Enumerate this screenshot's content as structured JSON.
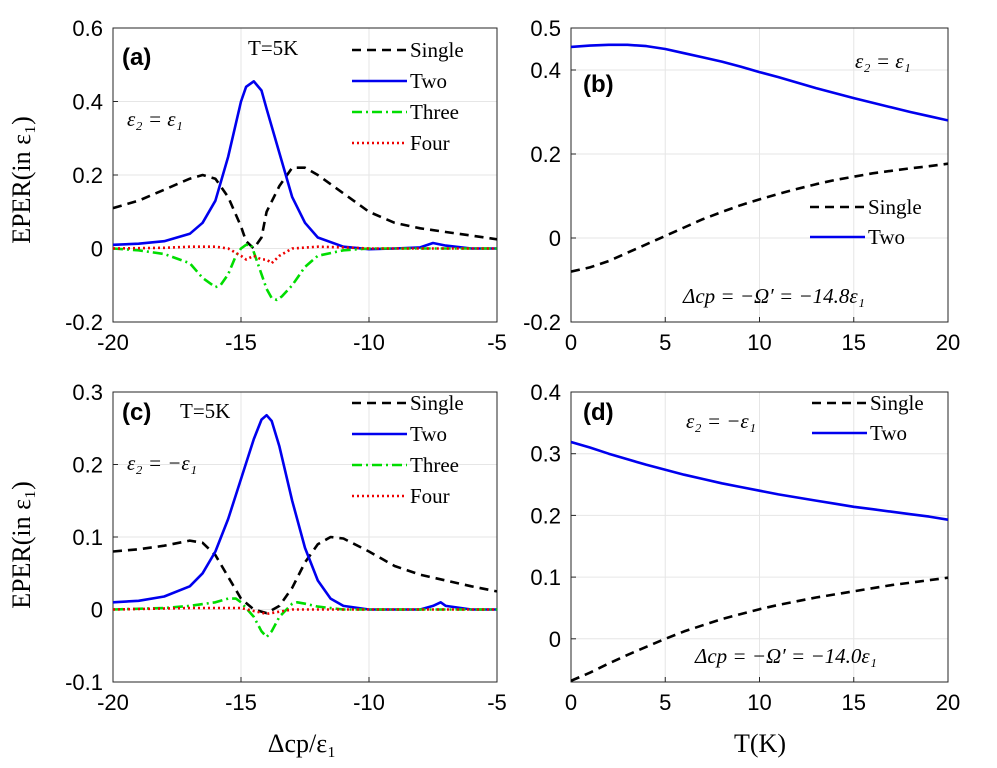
{
  "ylabel": "EPER(in ε₁)",
  "chart_data": [
    {
      "id": "a",
      "type": "line",
      "panel_label": "(a)",
      "annotations": [
        "T=5K",
        "ε₂ = ε₁"
      ],
      "xlim": [
        -20,
        -5
      ],
      "ylim": [
        -0.2,
        0.6
      ],
      "xticks": [
        -20,
        -15,
        -10,
        -5
      ],
      "yticks": [
        -0.2,
        0,
        0.2,
        0.4,
        0.6
      ],
      "xtick_labels": [
        "-20",
        "-15",
        "-10",
        "-5"
      ],
      "ytick_labels": [
        "-0.2",
        "0",
        "0.2",
        "0.4",
        "0.6"
      ],
      "legend_position": "top-right",
      "grid": true,
      "series": [
        {
          "name": "Single",
          "color": "#000000",
          "dash": "9,6",
          "x": [
            -20,
            -19,
            -18,
            -17,
            -16.5,
            -16,
            -15.5,
            -15,
            -14.8,
            -14.5,
            -14.2,
            -14,
            -13.5,
            -13,
            -12.5,
            -12,
            -11,
            -10,
            -9,
            -8,
            -7,
            -6,
            -5
          ],
          "y": [
            0.11,
            0.13,
            0.16,
            0.19,
            0.2,
            0.19,
            0.14,
            0.06,
            0.02,
            0.0,
            0.03,
            0.1,
            0.17,
            0.22,
            0.22,
            0.2,
            0.15,
            0.1,
            0.07,
            0.055,
            0.045,
            0.035,
            0.025
          ]
        },
        {
          "name": "Two",
          "color": "#0000ee",
          "dash": "",
          "x": [
            -20,
            -19,
            -18,
            -17,
            -16.5,
            -16,
            -15.5,
            -15,
            -14.8,
            -14.5,
            -14.2,
            -14,
            -13.5,
            -13,
            -12.5,
            -12,
            -11,
            -10,
            -9,
            -8,
            -7.5,
            -7,
            -6,
            -5
          ],
          "y": [
            0.01,
            0.013,
            0.02,
            0.04,
            0.07,
            0.13,
            0.25,
            0.4,
            0.44,
            0.455,
            0.43,
            0.38,
            0.26,
            0.14,
            0.07,
            0.03,
            0.005,
            -0.002,
            0.0,
            0.003,
            0.015,
            0.008,
            0.0,
            0.0
          ]
        },
        {
          "name": "Three",
          "color": "#00dd00",
          "dash": "10,4,2,4",
          "x": [
            -20,
            -19,
            -18,
            -17,
            -16.5,
            -16,
            -15.8,
            -15.5,
            -15.2,
            -15,
            -14.8,
            -14.6,
            -14.4,
            -14.2,
            -14,
            -13.8,
            -13.6,
            -13.4,
            -13,
            -12.5,
            -12,
            -11,
            -10,
            -5
          ],
          "y": [
            0.0,
            -0.005,
            -0.015,
            -0.04,
            -0.08,
            -0.105,
            -0.1,
            -0.07,
            -0.02,
            0.0,
            0.01,
            0.01,
            -0.03,
            -0.07,
            -0.11,
            -0.135,
            -0.14,
            -0.13,
            -0.1,
            -0.05,
            -0.02,
            -0.005,
            0.0,
            0.0
          ]
        },
        {
          "name": "Four",
          "color": "#ee0000",
          "dash": "2,3",
          "x": [
            -20,
            -18,
            -17,
            -16,
            -15.5,
            -15,
            -14.8,
            -14.5,
            -14.2,
            -14,
            -13.8,
            -13.5,
            -13,
            -12,
            -11,
            -10,
            -5
          ],
          "y": [
            0.0,
            0.002,
            0.005,
            0.005,
            0.0,
            -0.02,
            -0.03,
            -0.02,
            -0.03,
            -0.03,
            -0.04,
            -0.02,
            0.0,
            0.005,
            0.003,
            0.0,
            0.0
          ]
        }
      ]
    },
    {
      "id": "b",
      "type": "line",
      "panel_label": "(b)",
      "annotations": [
        "ε₂ = ε₁",
        "Δcp = −Ω′ = −14.8ε₁"
      ],
      "xlim": [
        0,
        20
      ],
      "ylim": [
        -0.2,
        0.5
      ],
      "xticks": [
        0,
        5,
        10,
        15,
        20
      ],
      "yticks": [
        -0.2,
        0,
        0.2,
        0.4,
        0.5
      ],
      "xtick_labels": [
        "0",
        "5",
        "10",
        "15",
        "20"
      ],
      "ytick_labels": [
        "-0.2",
        "0",
        "0.2",
        "0.4",
        "0.5"
      ],
      "legend_position": "right",
      "grid": true,
      "series": [
        {
          "name": "Single",
          "color": "#000000",
          "dash": "9,6",
          "x": [
            0,
            1,
            2,
            3,
            4,
            5,
            6,
            7,
            8,
            9,
            10,
            11,
            12,
            13,
            14,
            15,
            16,
            17,
            18,
            19,
            20
          ],
          "y": [
            -0.08,
            -0.07,
            -0.055,
            -0.035,
            -0.015,
            0.005,
            0.025,
            0.045,
            0.062,
            0.078,
            0.092,
            0.105,
            0.117,
            0.128,
            0.138,
            0.146,
            0.154,
            0.16,
            0.166,
            0.171,
            0.177
          ]
        },
        {
          "name": "Two",
          "color": "#0000ee",
          "dash": "",
          "x": [
            0,
            1,
            2,
            3,
            4,
            5,
            6,
            7,
            8,
            9,
            10,
            11,
            12,
            13,
            14,
            15,
            16,
            17,
            18,
            19,
            20
          ],
          "y": [
            0.455,
            0.458,
            0.46,
            0.46,
            0.457,
            0.45,
            0.44,
            0.43,
            0.42,
            0.408,
            0.395,
            0.383,
            0.37,
            0.357,
            0.345,
            0.333,
            0.322,
            0.311,
            0.3,
            0.29,
            0.28
          ]
        }
      ]
    },
    {
      "id": "c",
      "type": "line",
      "panel_label": "(c)",
      "annotations": [
        "T=5K",
        "ε₂ = −ε₁"
      ],
      "xlim": [
        -20,
        -5
      ],
      "ylim": [
        -0.1,
        0.3
      ],
      "xticks": [
        -20,
        -15,
        -10,
        -5
      ],
      "yticks": [
        -0.1,
        0,
        0.1,
        0.2,
        0.3
      ],
      "xtick_labels": [
        "-20",
        "-15",
        "-10",
        "-5"
      ],
      "ytick_labels": [
        "-0.1",
        "0",
        "0.1",
        "0.2",
        "0.3"
      ],
      "xlabel": "Δcp/ε₁",
      "legend_position": "top-right",
      "grid": true,
      "series": [
        {
          "name": "Single",
          "color": "#000000",
          "dash": "9,6",
          "x": [
            -20,
            -19,
            -18,
            -17,
            -16.5,
            -16,
            -15.5,
            -15,
            -14.5,
            -14,
            -13.5,
            -13,
            -12.5,
            -12,
            -11.5,
            -11,
            -10,
            -9,
            -8,
            -7,
            -6,
            -5
          ],
          "y": [
            0.08,
            0.083,
            0.088,
            0.095,
            0.092,
            0.075,
            0.045,
            0.015,
            0.0,
            -0.005,
            0.005,
            0.03,
            0.065,
            0.09,
            0.1,
            0.098,
            0.08,
            0.06,
            0.048,
            0.04,
            0.032,
            0.025
          ]
        },
        {
          "name": "Two",
          "color": "#0000ee",
          "dash": "",
          "x": [
            -20,
            -19,
            -18,
            -17,
            -16.5,
            -16,
            -15.5,
            -15,
            -14.5,
            -14.2,
            -14,
            -13.8,
            -13.5,
            -13,
            -12.5,
            -12,
            -11.5,
            -11,
            -10,
            -9,
            -8,
            -7.5,
            -7.2,
            -7,
            -6,
            -5
          ],
          "y": [
            0.01,
            0.012,
            0.018,
            0.032,
            0.05,
            0.08,
            0.125,
            0.18,
            0.235,
            0.262,
            0.268,
            0.26,
            0.225,
            0.15,
            0.085,
            0.04,
            0.015,
            0.005,
            0.0,
            0.0,
            0.0,
            0.005,
            0.01,
            0.005,
            0.0,
            0.0
          ]
        },
        {
          "name": "Three",
          "color": "#00dd00",
          "dash": "10,4,2,4",
          "x": [
            -20,
            -18,
            -17,
            -16,
            -15.5,
            -15.2,
            -15,
            -14.5,
            -14.2,
            -14,
            -13.8,
            -13.5,
            -13,
            -12.8,
            -12.5,
            -12,
            -11,
            -10,
            -5
          ],
          "y": [
            0.0,
            0.002,
            0.005,
            0.01,
            0.015,
            0.015,
            0.01,
            -0.01,
            -0.03,
            -0.038,
            -0.03,
            -0.01,
            0.008,
            0.01,
            0.008,
            0.004,
            0.0,
            0.0,
            0.0
          ]
        },
        {
          "name": "Four",
          "color": "#ee0000",
          "dash": "2,3",
          "x": [
            -20,
            -17,
            -15,
            -14.5,
            -14,
            -13.5,
            -13,
            -11,
            -5
          ],
          "y": [
            0.0,
            0.002,
            0.002,
            -0.002,
            -0.006,
            -0.003,
            0.0,
            0.0,
            0.0
          ]
        }
      ]
    },
    {
      "id": "d",
      "type": "line",
      "panel_label": "(d)",
      "annotations": [
        "ε₂ = −ε₁",
        "Δcp = −Ω′ = −14.0ε₁"
      ],
      "xlim": [
        0,
        20
      ],
      "ylim": [
        -0.07,
        0.4
      ],
      "xticks": [
        0,
        5,
        10,
        15,
        20
      ],
      "yticks": [
        0,
        0.1,
        0.2,
        0.3,
        0.4
      ],
      "xtick_labels": [
        "0",
        "5",
        "10",
        "15",
        "20"
      ],
      "ytick_labels": [
        "0",
        "0.1",
        "0.2",
        "0.3",
        "0.4"
      ],
      "xlabel": "T(K)",
      "legend_position": "top-right",
      "grid": true,
      "series": [
        {
          "name": "Single",
          "color": "#000000",
          "dash": "9,6",
          "x": [
            0,
            1,
            2,
            3,
            4,
            5,
            6,
            7,
            8,
            9,
            10,
            11,
            12,
            13,
            14,
            15,
            16,
            17,
            18,
            19,
            20
          ],
          "y": [
            -0.068,
            -0.055,
            -0.04,
            -0.026,
            -0.013,
            0.0,
            0.012,
            0.022,
            0.032,
            0.04,
            0.048,
            0.055,
            0.061,
            0.067,
            0.072,
            0.077,
            0.082,
            0.087,
            0.091,
            0.095,
            0.099
          ]
        },
        {
          "name": "Two",
          "color": "#0000ee",
          "dash": "",
          "x": [
            0,
            1,
            2,
            3,
            4,
            5,
            6,
            7,
            8,
            9,
            10,
            11,
            12,
            13,
            14,
            15,
            16,
            17,
            18,
            19,
            20
          ],
          "y": [
            0.319,
            0.31,
            0.3,
            0.291,
            0.282,
            0.274,
            0.266,
            0.259,
            0.252,
            0.246,
            0.24,
            0.234,
            0.229,
            0.224,
            0.219,
            0.214,
            0.21,
            0.206,
            0.202,
            0.198,
            0.193
          ]
        }
      ]
    }
  ]
}
